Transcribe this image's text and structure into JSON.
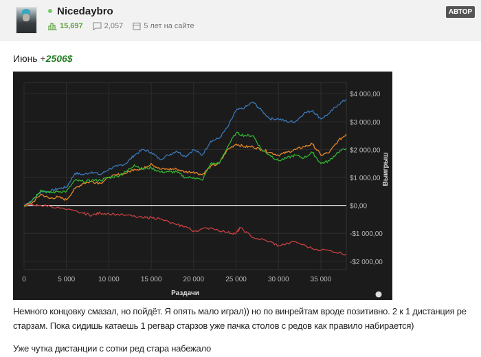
{
  "author": {
    "username": "Nicedaybro",
    "rating": "15,697",
    "comments": "2,057",
    "site_age": "5 лет на сайте",
    "badge": "АВТОР",
    "online_color": "#7cc96b"
  },
  "post": {
    "title_prefix": "Июнь +",
    "title_amount": "2506$",
    "paragraph1_line1": "Немного концовку смазал, но пойдёт. Я опять мало играл)) но по винрейтам вроде позитивно. 2 к 1  дистанция ре",
    "paragraph1_line2": "старзам. Пока сидишь катаешь 1 регвар старзов уже пачка столов с редов как правило набирается)",
    "paragraph2": "Уже чутка дистанции с сотки ред стара набежало"
  },
  "chart_data": {
    "type": "line",
    "xlabel": "Раздачи",
    "ylabel": "Выигрыш",
    "xlim": [
      0,
      38000
    ],
    "ylim": [
      -2300,
      4400
    ],
    "grid": true,
    "x_ticks": [
      0,
      5000,
      10000,
      15000,
      20000,
      25000,
      30000,
      35000
    ],
    "x_tick_labels": [
      "0",
      "5 000",
      "10 000",
      "15 000",
      "20 000",
      "25 000",
      "30 000",
      "35 000"
    ],
    "y_ticks": [
      4000,
      3000,
      2000,
      1000,
      0,
      -1000,
      -2000
    ],
    "y_tick_labels": [
      "$4 000,00",
      "$3 000,00",
      "$2 000,00",
      "$1 000,00",
      "$0,00",
      "-$1 000,00",
      "-$2 000,00"
    ],
    "y_axis_position": "right",
    "series": [
      {
        "color": "#3a78b8",
        "x": [
          0,
          1000,
          2000,
          3000,
          4000,
          5000,
          6000,
          7000,
          8000,
          9000,
          10000,
          11000,
          12000,
          13000,
          14000,
          15000,
          16000,
          17000,
          18000,
          19000,
          20000,
          21000,
          22000,
          23000,
          24000,
          25000,
          26000,
          27000,
          28000,
          29000,
          30000,
          31000,
          32000,
          33000,
          34000,
          35000,
          36000,
          37000,
          38000
        ],
        "y": [
          0,
          200,
          500,
          500,
          600,
          650,
          1150,
          1100,
          1200,
          1100,
          1300,
          1400,
          1500,
          1800,
          2000,
          1900,
          1650,
          1800,
          1950,
          1750,
          2000,
          1800,
          2300,
          2400,
          2800,
          3400,
          3500,
          3700,
          3400,
          3100,
          3100,
          3000,
          3000,
          3300,
          3400,
          3100,
          3300,
          3600,
          3800
        ]
      },
      {
        "color": "#e8892a",
        "x": [
          0,
          1000,
          2000,
          3000,
          4000,
          5000,
          6000,
          7000,
          8000,
          9000,
          10000,
          11000,
          12000,
          13000,
          14000,
          15000,
          16000,
          17000,
          18000,
          19000,
          20000,
          21000,
          22000,
          23000,
          24000,
          25000,
          26000,
          27000,
          28000,
          29000,
          30000,
          31000,
          32000,
          33000,
          34000,
          35000,
          36000,
          37000,
          38000
        ],
        "y": [
          0,
          100,
          400,
          250,
          300,
          200,
          600,
          800,
          850,
          800,
          1000,
          1100,
          1150,
          1300,
          1300,
          1500,
          1300,
          1300,
          1300,
          1200,
          1200,
          1100,
          1400,
          1500,
          2000,
          2200,
          2100,
          2100,
          2000,
          1900,
          1800,
          1900,
          2000,
          2100,
          2200,
          1800,
          1900,
          2300,
          2550
        ]
      },
      {
        "color": "#2fb52f",
        "x": [
          0,
          1000,
          2000,
          3000,
          4000,
          5000,
          6000,
          7000,
          8000,
          9000,
          10000,
          11000,
          12000,
          13000,
          14000,
          15000,
          16000,
          17000,
          18000,
          19000,
          20000,
          21000,
          22000,
          23000,
          24000,
          25000,
          26000,
          27000,
          28000,
          29000,
          30000,
          31000,
          32000,
          33000,
          34000,
          35000,
          36000,
          37000,
          38000
        ],
        "y": [
          -50,
          200,
          550,
          450,
          500,
          500,
          900,
          850,
          900,
          900,
          1000,
          1050,
          1200,
          1450,
          1300,
          1350,
          1200,
          1200,
          1200,
          1000,
          1000,
          900,
          1500,
          1500,
          2100,
          2600,
          2500,
          2500,
          2000,
          1800,
          1600,
          1700,
          1800,
          1700,
          1900,
          1500,
          1600,
          1900,
          2050
        ]
      },
      {
        "color": "#c84040",
        "x": [
          0,
          2000,
          3000,
          5000,
          7000,
          8000,
          9000,
          10000,
          12000,
          14000,
          15000,
          16000,
          18000,
          19000,
          20000,
          22000,
          24000,
          25000,
          25500,
          27000,
          29000,
          30000,
          32000,
          34000,
          36000,
          38000
        ],
        "y": [
          0,
          0,
          -20,
          -150,
          -280,
          -350,
          -270,
          -300,
          -350,
          -450,
          -430,
          -480,
          -700,
          -750,
          -920,
          -800,
          -970,
          -1000,
          -800,
          -1150,
          -1300,
          -1450,
          -1300,
          -1550,
          -1620,
          -1750
        ]
      }
    ]
  }
}
